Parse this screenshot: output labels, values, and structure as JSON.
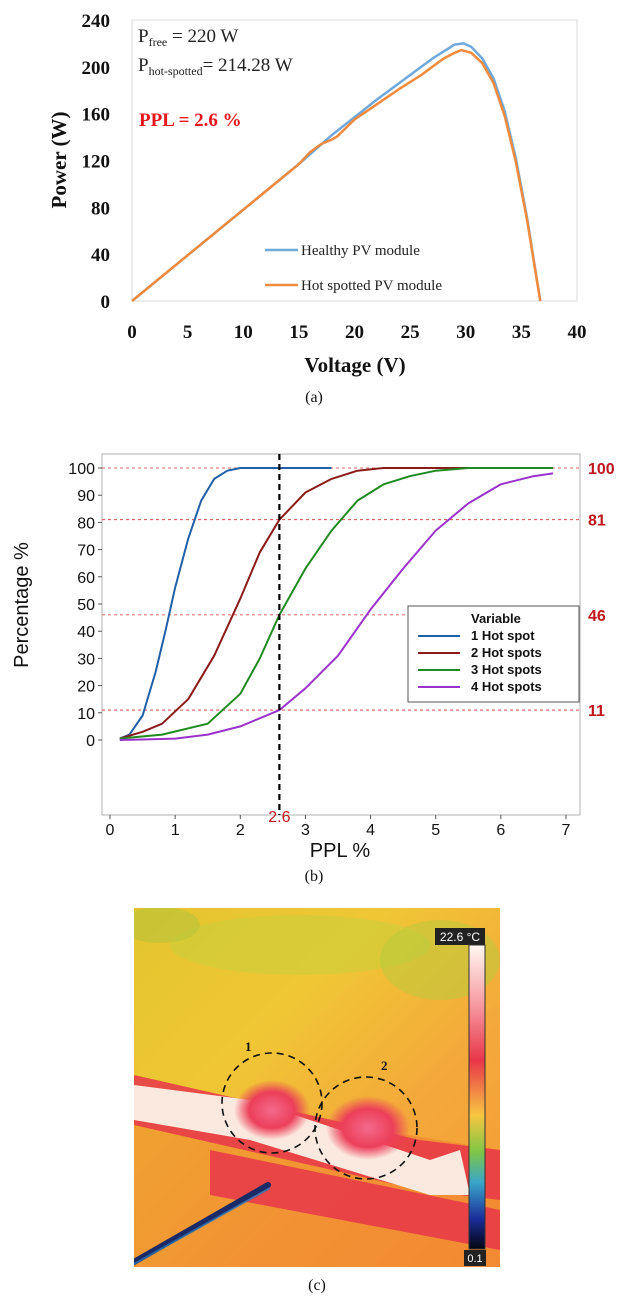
{
  "chart_data": [
    {
      "type": "line",
      "panel_label": "(a)",
      "xlabel": "Voltage (V)",
      "ylabel": "Power (W)",
      "xlim": [
        0,
        40
      ],
      "ylim": [
        0,
        240
      ],
      "xticks": [
        "0",
        "5",
        "10",
        "15",
        "20",
        "25",
        "30",
        "35",
        "40"
      ],
      "yticks": [
        "0",
        "40",
        "80",
        "120",
        "160",
        "200",
        "240"
      ],
      "annotations": {
        "p_free_main": "P",
        "p_free_sub": "free",
        "p_free_value": " = 220 W",
        "p_hot_main": "P",
        "p_hot_sub": "hot-spotted",
        "p_hot_value": "= 214.28 W",
        "ppl": "PPL = 2.6 %"
      },
      "legend_position": "bottom-right",
      "series": [
        {
          "name": "Healthy PV module",
          "color": "#6fa8dc",
          "points": [
            [
              0,
              0
            ],
            [
              5,
              39
            ],
            [
              10,
              78
            ],
            [
              15,
              117
            ],
            [
              18,
              142
            ],
            [
              20,
              157
            ],
            [
              22,
              172
            ],
            [
              24,
              186
            ],
            [
              26,
              200
            ],
            [
              27,
              207
            ],
            [
              28,
              213
            ],
            [
              29,
              219
            ],
            [
              29.8,
              220
            ],
            [
              30.5,
              217
            ],
            [
              31.5,
              207
            ],
            [
              32.5,
              190
            ],
            [
              33.5,
              162
            ],
            [
              34.5,
              122
            ],
            [
              35.5,
              72
            ],
            [
              36.2,
              30
            ],
            [
              36.7,
              0
            ]
          ]
        },
        {
          "name": "Hot spotted PV module",
          "color": "#f08a3c",
          "points": [
            [
              0,
              0
            ],
            [
              5,
              39
            ],
            [
              10,
              78
            ],
            [
              15,
              117
            ],
            [
              16,
              127
            ],
            [
              17,
              134
            ],
            [
              18,
              138
            ],
            [
              18.5,
              141
            ],
            [
              20,
              155
            ],
            [
              22,
              168
            ],
            [
              24,
              181
            ],
            [
              26,
              193
            ],
            [
              27,
              200
            ],
            [
              28,
              207
            ],
            [
              29,
              212
            ],
            [
              29.6,
              214.28
            ],
            [
              30.5,
              212
            ],
            [
              31.5,
              203
            ],
            [
              32.5,
              186
            ],
            [
              33.5,
              158
            ],
            [
              34.5,
              119
            ],
            [
              35.5,
              70
            ],
            [
              36.2,
              29
            ],
            [
              36.7,
              0
            ]
          ]
        }
      ]
    },
    {
      "type": "line",
      "panel_label": "(b)",
      "xlabel": "PPL %",
      "ylabel": "Percentage %",
      "xlim": [
        0,
        7
      ],
      "ylim": [
        -3,
        105
      ],
      "xticks": [
        "0",
        "1",
        "2",
        "3",
        "4",
        "5",
        "6",
        "7"
      ],
      "yticks": [
        "0",
        "10",
        "20",
        "30",
        "40",
        "50",
        "60",
        "70",
        "80",
        "90",
        "100"
      ],
      "legend_title": "Variable",
      "legend_position": "right",
      "marker_x": 2.6,
      "marker_label": "2.6",
      "reference_lines": [
        {
          "y": 100,
          "label": "100"
        },
        {
          "y": 81,
          "label": "81"
        },
        {
          "y": 46,
          "label": "46"
        },
        {
          "y": 11,
          "label": "11"
        }
      ],
      "series": [
        {
          "name": "1 Hot spot",
          "color": "#1f5fa8",
          "points": [
            [
              0.15,
              0.5
            ],
            [
              0.3,
              2
            ],
            [
              0.5,
              9
            ],
            [
              0.7,
              25
            ],
            [
              0.85,
              40
            ],
            [
              1.0,
              56
            ],
            [
              1.2,
              74
            ],
            [
              1.4,
              88
            ],
            [
              1.6,
              96
            ],
            [
              1.8,
              99
            ],
            [
              2.0,
              100
            ],
            [
              2.5,
              100
            ],
            [
              3.0,
              100
            ],
            [
              3.4,
              100
            ]
          ]
        },
        {
          "name": "2 Hot spots",
          "color": "#8b1a1a",
          "points": [
            [
              0.15,
              0.5
            ],
            [
              0.5,
              3
            ],
            [
              0.8,
              6
            ],
            [
              1.2,
              15
            ],
            [
              1.6,
              31
            ],
            [
              2.0,
              52
            ],
            [
              2.3,
              69
            ],
            [
              2.6,
              81
            ],
            [
              3.0,
              91
            ],
            [
              3.4,
              96
            ],
            [
              3.8,
              99
            ],
            [
              4.2,
              100
            ],
            [
              5.0,
              100
            ],
            [
              6.8,
              100
            ]
          ]
        },
        {
          "name": "3 Hot spots",
          "color": "#1f8a1f",
          "points": [
            [
              0.15,
              0.5
            ],
            [
              0.8,
              2
            ],
            [
              1.5,
              6
            ],
            [
              2.0,
              17
            ],
            [
              2.3,
              30
            ],
            [
              2.6,
              46
            ],
            [
              3.0,
              63
            ],
            [
              3.4,
              77
            ],
            [
              3.8,
              88
            ],
            [
              4.2,
              94
            ],
            [
              4.6,
              97
            ],
            [
              5.0,
              99
            ],
            [
              5.5,
              100
            ],
            [
              6.0,
              100
            ],
            [
              6.8,
              100
            ]
          ]
        },
        {
          "name": "4 Hot spots",
          "color": "#9a32cd",
          "points": [
            [
              0.15,
              0
            ],
            [
              1.0,
              0.5
            ],
            [
              1.5,
              2
            ],
            [
              2.0,
              5
            ],
            [
              2.6,
              11
            ],
            [
              3.0,
              19
            ],
            [
              3.5,
              31
            ],
            [
              4.0,
              48
            ],
            [
              4.5,
              63
            ],
            [
              5.0,
              77
            ],
            [
              5.5,
              87
            ],
            [
              6.0,
              94
            ],
            [
              6.5,
              97
            ],
            [
              6.8,
              98
            ]
          ]
        }
      ]
    }
  ],
  "thermal_image": {
    "panel_label": "(c)",
    "scale_max": "22.6 °C",
    "scale_min": "0.1",
    "spot_labels": [
      "1",
      "2"
    ]
  }
}
